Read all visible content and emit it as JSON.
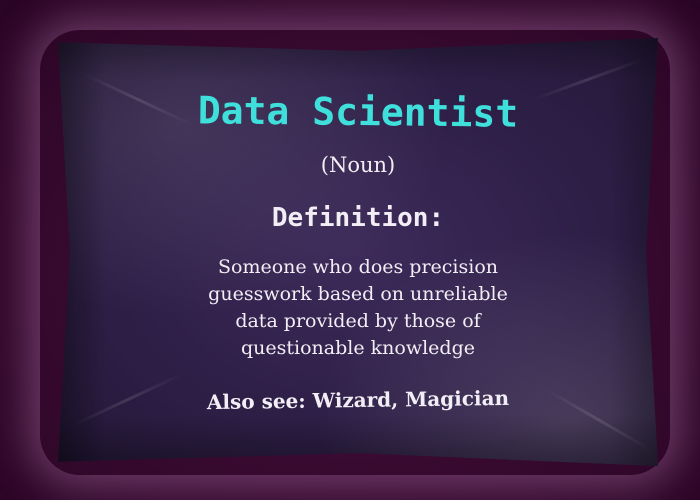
{
  "pillow": {
    "title": "Data Scientist",
    "part_of_speech": "(Noun)",
    "definition_heading": "Definition:",
    "definition_lines": [
      "Someone who does precision",
      "guesswork based on unreliable",
      "data provided by those of",
      "questionable knowledge"
    ],
    "also_see": "Also see: Wizard, Magician"
  },
  "colors": {
    "background": "#3a0a32",
    "pillow": "#2e1f47",
    "title_text": "#3fe0dc",
    "body_text": "#f2eef5"
  }
}
